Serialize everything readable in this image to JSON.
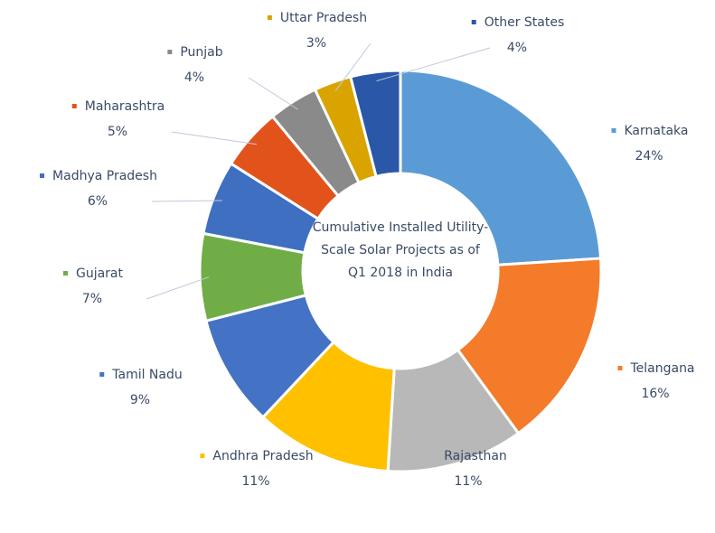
{
  "chart_data": {
    "type": "donut",
    "title": "Cumulative Installed Utility-Scale Solar Projects as of Q1 2018 in India",
    "categories": [
      "Karnataka",
      "Telangana",
      "Rajasthan",
      "Andhra Pradesh",
      "Tamil Nadu",
      "Gujarat",
      "Madhya Pradesh",
      "Maharashtra",
      "Punjab",
      "Uttar Pradesh",
      "Other States"
    ],
    "values": [
      24,
      16,
      11,
      11,
      9,
      7,
      6,
      5,
      4,
      3,
      4
    ],
    "value_labels": [
      "24%",
      "16%",
      "11%",
      "11%",
      "9%",
      "7%",
      "6%",
      "5%",
      "4%",
      "3%",
      "4%"
    ],
    "colors": [
      "#5b9bd5",
      "#f47b2a",
      "#b8b8b8",
      "#ffc000",
      "#4472c4",
      "#70ad47",
      "#3f6fc0",
      "#e2531c",
      "#8a8a8a",
      "#d9a400",
      "#2a57a8"
    ]
  }
}
